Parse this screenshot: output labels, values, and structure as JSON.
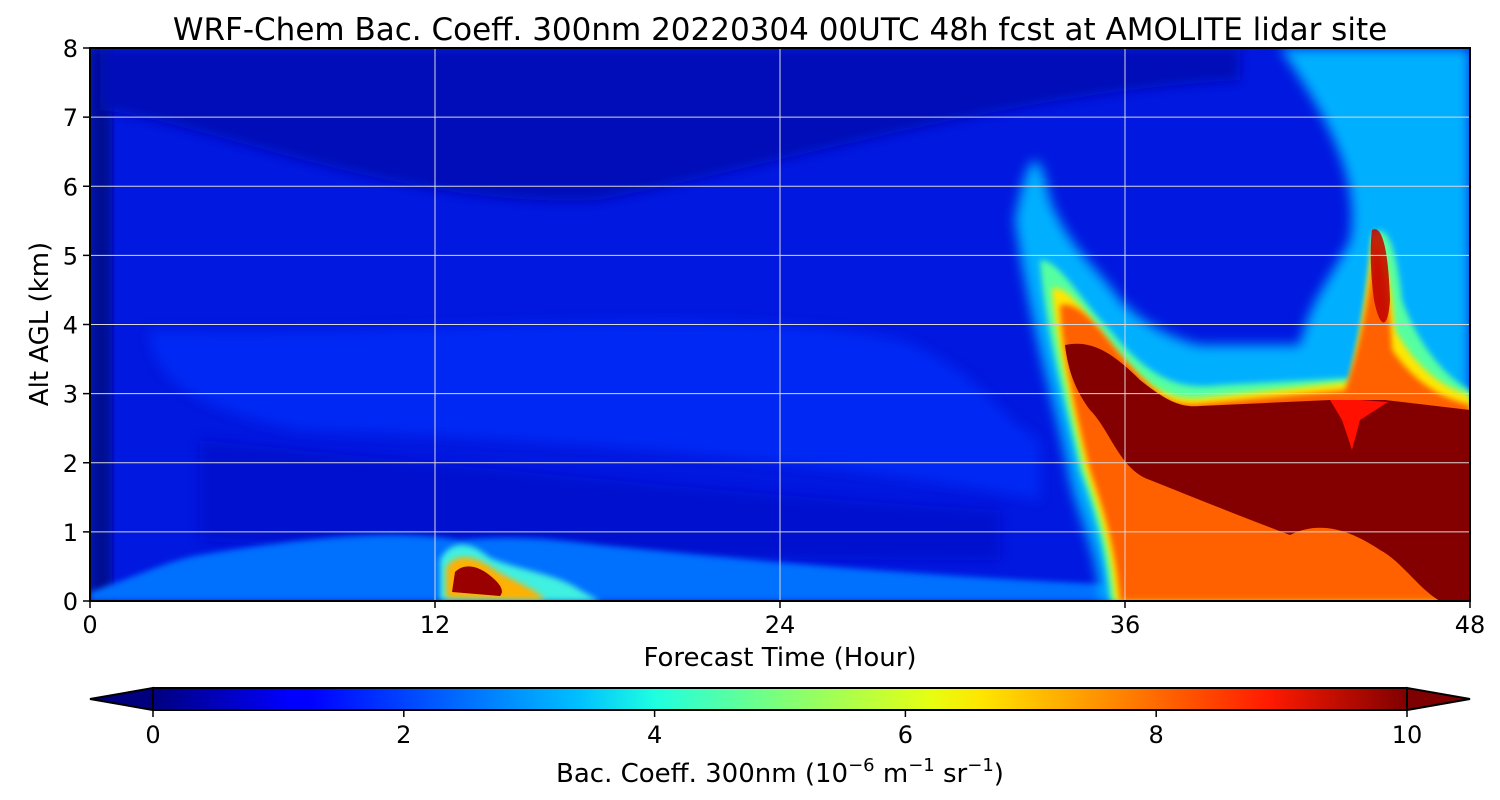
{
  "chart_data": {
    "type": "heatmap",
    "title": "WRF-Chem Bac. Coeff. 300nm  20220304 00UTC 48h fcst at AMOLITE lidar site",
    "xlabel": "Forecast Time (Hour)",
    "ylabel": "Alt AGL (km)",
    "xlim": [
      0,
      48
    ],
    "ylim": [
      0,
      8
    ],
    "x_ticks": [
      "0",
      "12",
      "24",
      "36",
      "48"
    ],
    "y_ticks": [
      "0",
      "1",
      "2",
      "3",
      "4",
      "5",
      "6",
      "7",
      "8"
    ],
    "grid": true,
    "colormap": "jet",
    "colorbar": {
      "orientation": "horizontal",
      "placement": "bottom",
      "range": [
        0,
        10
      ],
      "ticks": [
        "0",
        "2",
        "4",
        "6",
        "8",
        "10"
      ],
      "extend": "both",
      "label_main": "Bac. Coeff. 300nm  (10",
      "label_exp1": "−6",
      "label_mid1": " m",
      "label_exp2": "−1",
      "label_mid2": " sr",
      "label_exp3": "−1",
      "label_end": ")"
    },
    "features": [
      {
        "description": "background aerosol layer",
        "x": [
          0,
          33
        ],
        "y": [
          0,
          8
        ],
        "value": 1.2
      },
      {
        "description": "near-surface layer",
        "x": [
          6,
          36
        ],
        "y": [
          0,
          1.0
        ],
        "value": 2.5
      },
      {
        "description": "surface plume max",
        "x": [
          12.3,
          15
        ],
        "y": [
          0.05,
          0.6
        ],
        "value": 10
      },
      {
        "description": "elevated dust plume top",
        "x": [
          33,
          38
        ],
        "y": [
          3.5,
          4.7
        ],
        "value": 8
      },
      {
        "description": "thick dust layer core",
        "x": [
          35,
          48
        ],
        "y": [
          0,
          3.0
        ],
        "value": 10
      },
      {
        "description": "upper thin layer",
        "x": [
          44,
          47
        ],
        "y": [
          4.0,
          5.5
        ],
        "value": 8.5
      },
      {
        "description": "high altitude tail",
        "x": [
          40,
          45
        ],
        "y": [
          5,
          8
        ],
        "value": 3.5
      }
    ]
  }
}
